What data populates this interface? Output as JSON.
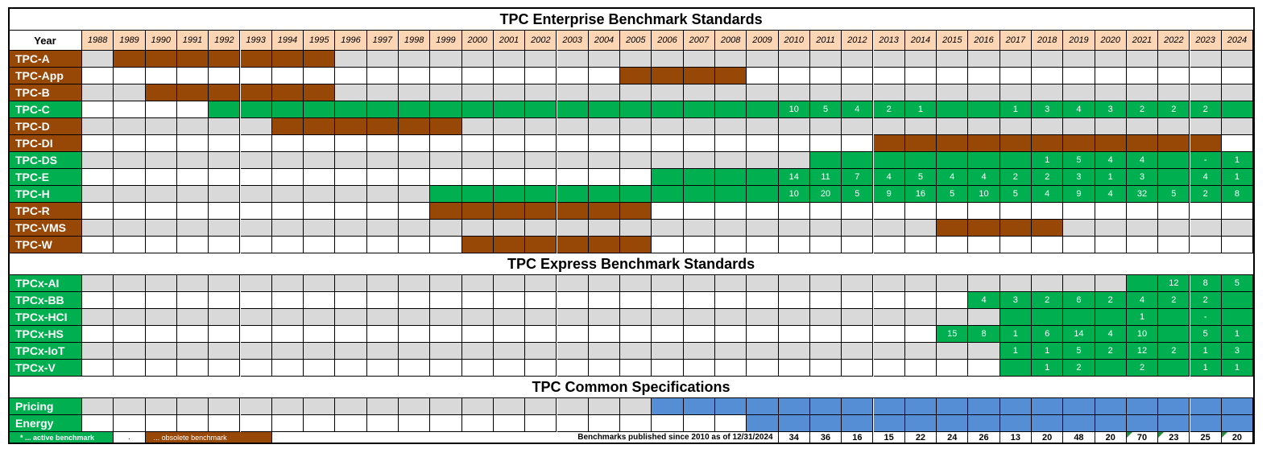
{
  "colors": {
    "active": "#00B050",
    "obsolete": "#974706",
    "common": "#558ED5",
    "year_header": "#FCD5B4",
    "grey": "#D9D9D9",
    "white": "#FFFFFF"
  },
  "sections": [
    {
      "title": "TPC Enterprise  Benchmark Standards",
      "year_label": "Year",
      "rows": [
        {
          "name": "TPC-A",
          "status": "obsolete",
          "spans": [
            [
              1989,
              1995
            ]
          ],
          "values": {}
        },
        {
          "name": "TPC-App",
          "status": "obsolete",
          "spans": [
            [
              2005,
              2008
            ]
          ],
          "values": {}
        },
        {
          "name": "TPC-B",
          "status": "obsolete",
          "spans": [
            [
              1990,
              1995
            ]
          ],
          "values": {}
        },
        {
          "name": "TPC-C",
          "status": "active",
          "spans": [
            [
              1992,
              2024
            ]
          ],
          "values": {
            "2010": "10",
            "2011": "5",
            "2012": "4",
            "2013": "2",
            "2014": "1",
            "2017": "1",
            "2018": "3",
            "2019": "4",
            "2020": "3",
            "2021": "2",
            "2022": "2",
            "2023": "2"
          }
        },
        {
          "name": "TPC-D",
          "status": "obsolete",
          "spans": [
            [
              1994,
              1999
            ]
          ],
          "values": {}
        },
        {
          "name": "TPC-DI",
          "status": "obsolete",
          "spans": [
            [
              2013,
              2023
            ]
          ],
          "values": {}
        },
        {
          "name": "TPC-DS",
          "status": "active",
          "spans": [
            [
              2011,
              2024
            ]
          ],
          "values": {
            "2018": "1",
            "2019": "5",
            "2020": "4",
            "2021": "4",
            "2023": "-",
            "2024": "1"
          }
        },
        {
          "name": "TPC-E",
          "status": "active",
          "spans": [
            [
              2006,
              2024
            ]
          ],
          "values": {
            "2010": "14",
            "2011": "11",
            "2012": "7",
            "2013": "4",
            "2014": "5",
            "2015": "4",
            "2016": "4",
            "2017": "2",
            "2018": "2",
            "2019": "3",
            "2020": "1",
            "2021": "3",
            "2023": "4",
            "2024": "1"
          }
        },
        {
          "name": "TPC-H",
          "status": "active",
          "spans": [
            [
              1999,
              2024
            ]
          ],
          "values": {
            "2010": "10",
            "2011": "20",
            "2012": "5",
            "2013": "9",
            "2014": "16",
            "2015": "5",
            "2016": "10",
            "2017": "5",
            "2018": "4",
            "2019": "9",
            "2020": "4",
            "2021": "32",
            "2022": "5",
            "2023": "2",
            "2024": "8"
          }
        },
        {
          "name": "TPC-R",
          "status": "obsolete",
          "spans": [
            [
              1999,
              2005
            ]
          ],
          "values": {}
        },
        {
          "name": "TPC-VMS",
          "status": "obsolete",
          "spans": [
            [
              2015,
              2018
            ]
          ],
          "values": {}
        },
        {
          "name": "TPC-W",
          "status": "obsolete",
          "spans": [
            [
              2000,
              2005
            ]
          ],
          "values": {}
        }
      ]
    },
    {
      "title": "TPC Express  Benchmark Standards",
      "rows": [
        {
          "name": "TPCx-AI",
          "status": "active",
          "spans": [
            [
              2021,
              2024
            ]
          ],
          "values": {
            "2022": "12",
            "2023": "8",
            "2024": "5"
          }
        },
        {
          "name": "TPCx-BB",
          "status": "active",
          "spans": [
            [
              2016,
              2024
            ]
          ],
          "values": {
            "2016": "4",
            "2017": "3",
            "2018": "2",
            "2019": "6",
            "2020": "2",
            "2021": "4",
            "2022": "2",
            "2023": "2"
          }
        },
        {
          "name": "TPCx-HCI",
          "status": "active",
          "spans": [
            [
              2017,
              2024
            ]
          ],
          "values": {
            "2021": "1",
            "2023": "-"
          }
        },
        {
          "name": "TPCx-HS",
          "status": "active",
          "spans": [
            [
              2015,
              2024
            ]
          ],
          "values": {
            "2015": "15",
            "2016": "8",
            "2017": "1",
            "2018": "6",
            "2019": "14",
            "2020": "4",
            "2021": "10",
            "2023": "5",
            "2024": "1"
          }
        },
        {
          "name": "TPCx-IoT",
          "status": "active",
          "spans": [
            [
              2017,
              2024
            ]
          ],
          "values": {
            "2017": "1",
            "2018": "1",
            "2019": "5",
            "2020": "2",
            "2021": "12",
            "2022": "2",
            "2023": "1",
            "2024": "3"
          }
        },
        {
          "name": "TPCx-V",
          "status": "active",
          "spans": [
            [
              2017,
              2024
            ]
          ],
          "values": {
            "2018": "1",
            "2019": "2",
            "2021": "2",
            "2023": "1",
            "2024": "1"
          }
        }
      ]
    },
    {
      "title": "TPC Common Specifications",
      "rows": [
        {
          "name": "Pricing",
          "status": "active",
          "spans": [
            [
              2006,
              2024
            ]
          ],
          "span_status": "common",
          "values": {}
        },
        {
          "name": "Energy",
          "status": "active",
          "spans": [
            [
              2009,
              2024
            ]
          ],
          "span_status": "common",
          "values": {}
        }
      ]
    }
  ],
  "footer": {
    "legend_active": "* ... active benchmark",
    "legend_dot": ".",
    "legend_obsolete": "... obsolete benchmark",
    "published_label": "Benchmarks published since 2010 as of 12/31/2024",
    "totals": {
      "2010": "34",
      "2011": "36",
      "2012": "16",
      "2013": "15",
      "2014": "22",
      "2015": "24",
      "2016": "26",
      "2017": "13",
      "2018": "20",
      "2019": "48",
      "2020": "20",
      "2021": "70",
      "2022": "23",
      "2023": "25",
      "2024": "20"
    },
    "flagged_totals": [
      "2021",
      "2022",
      "2024"
    ]
  },
  "chart_data": {
    "type": "table",
    "years": [
      1988,
      1989,
      1990,
      1991,
      1992,
      1993,
      1994,
      1995,
      1996,
      1997,
      1998,
      1999,
      2000,
      2001,
      2002,
      2003,
      2004,
      2005,
      2006,
      2007,
      2008,
      2009,
      2010,
      2011,
      2012,
      2013,
      2014,
      2015,
      2016,
      2017,
      2018,
      2019,
      2020,
      2021,
      2022,
      2023,
      2024
    ],
    "legend": [
      "* ... active benchmark",
      "... obsolete benchmark"
    ]
  }
}
